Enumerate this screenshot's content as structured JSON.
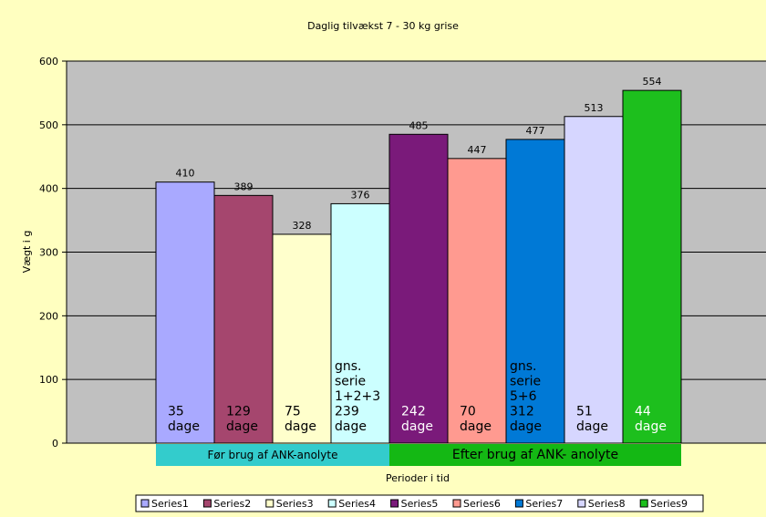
{
  "chart_data": {
    "type": "bar",
    "title": "Daglig tilvækst 7 - 30 kg grise",
    "xlabel": "Perioder i tid",
    "ylabel": "Vægt i g",
    "ylim": [
      0,
      600
    ],
    "yticks": [
      "0",
      "100",
      "200",
      "300",
      "400",
      "500",
      "600"
    ],
    "grid": true,
    "legend_position": "bottom",
    "series": [
      {
        "name": "Series1",
        "values": [
          410
        ],
        "color": "#A9A9FF",
        "annotation": [
          "35",
          "dage"
        ],
        "annotation_color": "#000000"
      },
      {
        "name": "Series2",
        "values": [
          389
        ],
        "color": "#A5466E",
        "annotation": [
          "129",
          "dage"
        ],
        "annotation_color": "#000000"
      },
      {
        "name": "Series3",
        "values": [
          328
        ],
        "color": "#FFFFCC",
        "annotation": [
          "75",
          "dage"
        ],
        "annotation_color": "#000000"
      },
      {
        "name": "Series4",
        "values": [
          376
        ],
        "color": "#CCFFFF",
        "annotation": [
          "gns.",
          "serie",
          "1+2+3",
          " 239",
          "dage"
        ],
        "annotation_color": "#000000"
      },
      {
        "name": "Series5",
        "values": [
          485
        ],
        "color": "#7A1A7A",
        "annotation": [
          "242",
          "dage"
        ],
        "annotation_color": "#FFFFFF"
      },
      {
        "name": "Series6",
        "values": [
          447
        ],
        "color": "#FF9A90",
        "annotation": [
          "70",
          "dage"
        ],
        "annotation_color": "#000000"
      },
      {
        "name": "Series7",
        "values": [
          477
        ],
        "color": "#0079D6",
        "annotation": [
          "gns.",
          "serie",
          "5+6",
          " 312",
          "dage"
        ],
        "annotation_color": "#000000"
      },
      {
        "name": "Series8",
        "values": [
          513
        ],
        "color": "#D6D6FF",
        "annotation": [
          "51",
          "dage"
        ],
        "annotation_color": "#000000"
      },
      {
        "name": "Series9",
        "values": [
          554
        ],
        "color": "#1DBF1D",
        "annotation": [
          "44",
          "dage"
        ],
        "annotation_color": "#FFFFFF"
      }
    ],
    "period_labels": [
      {
        "text": "Før brug af ANK-anolyte",
        "color": "#33CCCC",
        "series_span": [
          0,
          3
        ]
      },
      {
        "text": "Efter brug af ANK- anolyte",
        "color": "#14B814",
        "series_span": [
          4,
          8
        ]
      }
    ]
  },
  "colors": {
    "background": "#FFFFC0",
    "plot_area": "#C0C0C0"
  }
}
